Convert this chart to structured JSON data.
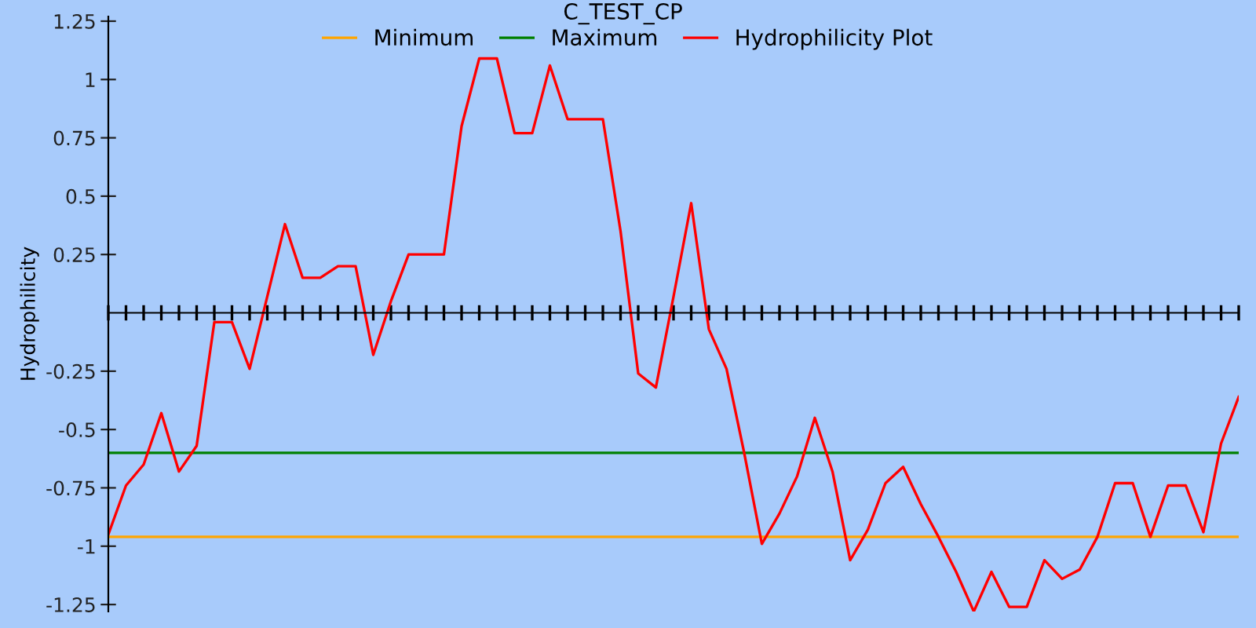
{
  "chart_data": {
    "type": "line",
    "title": "C_TEST_CP",
    "ylabel": "Hydrophilicity",
    "categories": [
      null,
      null,
      null,
      null,
      null,
      null,
      null,
      null,
      null,
      null,
      null,
      null,
      null,
      null,
      null,
      null,
      null,
      null,
      null,
      null,
      null,
      null,
      null,
      null,
      null,
      null,
      null,
      null,
      null,
      null,
      null,
      null,
      null,
      null,
      null,
      null,
      null,
      null,
      null,
      null,
      null,
      null,
      null,
      null,
      null,
      null,
      null,
      null,
      null,
      null,
      null,
      null,
      null,
      null,
      null,
      null,
      null,
      null,
      null,
      null,
      null,
      null,
      null,
      null,
      null
    ],
    "series": [
      {
        "name": "Minimum",
        "color": "#ffa500",
        "values": [
          -0.96,
          -0.96,
          -0.96,
          -0.96,
          -0.96,
          -0.96,
          -0.96,
          -0.96,
          -0.96,
          -0.96,
          -0.96,
          -0.96,
          -0.96,
          -0.96,
          -0.96,
          -0.96,
          -0.96,
          -0.96,
          -0.96,
          -0.96,
          -0.96,
          -0.96,
          -0.96,
          -0.96,
          -0.96,
          -0.96,
          -0.96,
          -0.96,
          -0.96,
          -0.96,
          -0.96,
          -0.96,
          -0.96,
          -0.96,
          -0.96,
          -0.96,
          -0.96,
          -0.96,
          -0.96,
          -0.96,
          -0.96,
          -0.96,
          -0.96,
          -0.96,
          -0.96,
          -0.96,
          -0.96,
          -0.96,
          -0.96,
          -0.96,
          -0.96,
          -0.96,
          -0.96,
          -0.96,
          -0.96,
          -0.96,
          -0.96,
          -0.96,
          -0.96,
          -0.96,
          -0.96,
          -0.96,
          -0.96,
          -0.96,
          -0.96
        ]
      },
      {
        "name": "Maximum",
        "color": "#008000",
        "values": [
          -0.6,
          -0.6,
          -0.6,
          -0.6,
          -0.6,
          -0.6,
          -0.6,
          -0.6,
          -0.6,
          -0.6,
          -0.6,
          -0.6,
          -0.6,
          -0.6,
          -0.6,
          -0.6,
          -0.6,
          -0.6,
          -0.6,
          -0.6,
          -0.6,
          -0.6,
          -0.6,
          -0.6,
          -0.6,
          -0.6,
          -0.6,
          -0.6,
          -0.6,
          -0.6,
          -0.6,
          -0.6,
          -0.6,
          -0.6,
          -0.6,
          -0.6,
          -0.6,
          -0.6,
          -0.6,
          -0.6,
          -0.6,
          -0.6,
          -0.6,
          -0.6,
          -0.6,
          -0.6,
          -0.6,
          -0.6,
          -0.6,
          -0.6,
          -0.6,
          -0.6,
          -0.6,
          -0.6,
          -0.6,
          -0.6,
          -0.6,
          -0.6,
          -0.6,
          -0.6,
          -0.6,
          -0.6,
          -0.6,
          -0.6,
          -0.6
        ]
      },
      {
        "name": "Hydrophilicity Plot",
        "color": "#ff0000",
        "values": [
          -0.95,
          -0.74,
          -0.65,
          -0.43,
          -0.68,
          -0.57,
          -0.04,
          -0.04,
          -0.24,
          0.07,
          0.38,
          0.15,
          0.15,
          0.2,
          0.2,
          -0.18,
          0.05,
          0.25,
          0.25,
          0.25,
          0.8,
          1.09,
          1.09,
          0.77,
          0.77,
          1.06,
          0.83,
          0.83,
          0.83,
          0.35,
          -0.26,
          -0.32,
          0.07,
          0.47,
          -0.07,
          -0.24,
          -0.6,
          -0.99,
          -0.86,
          -0.7,
          -0.45,
          -0.68,
          -1.06,
          -0.93,
          -0.73,
          -0.66,
          -0.82,
          -0.96,
          -1.11,
          -1.28,
          -1.11,
          -1.26,
          -1.26,
          -1.06,
          -1.14,
          -1.1,
          -0.96,
          -0.73,
          -0.73,
          -0.96,
          -0.74,
          -0.74,
          -0.94,
          -0.56,
          -0.36
        ]
      }
    ],
    "ylim": [
      -1.28,
      1.27
    ],
    "yticks": [
      -1.25,
      -1,
      -0.75,
      -0.5,
      -0.25,
      0.25,
      0.5,
      0.75,
      1,
      1.25
    ],
    "legend": "top",
    "marker": "none",
    "line_style": "solid"
  }
}
